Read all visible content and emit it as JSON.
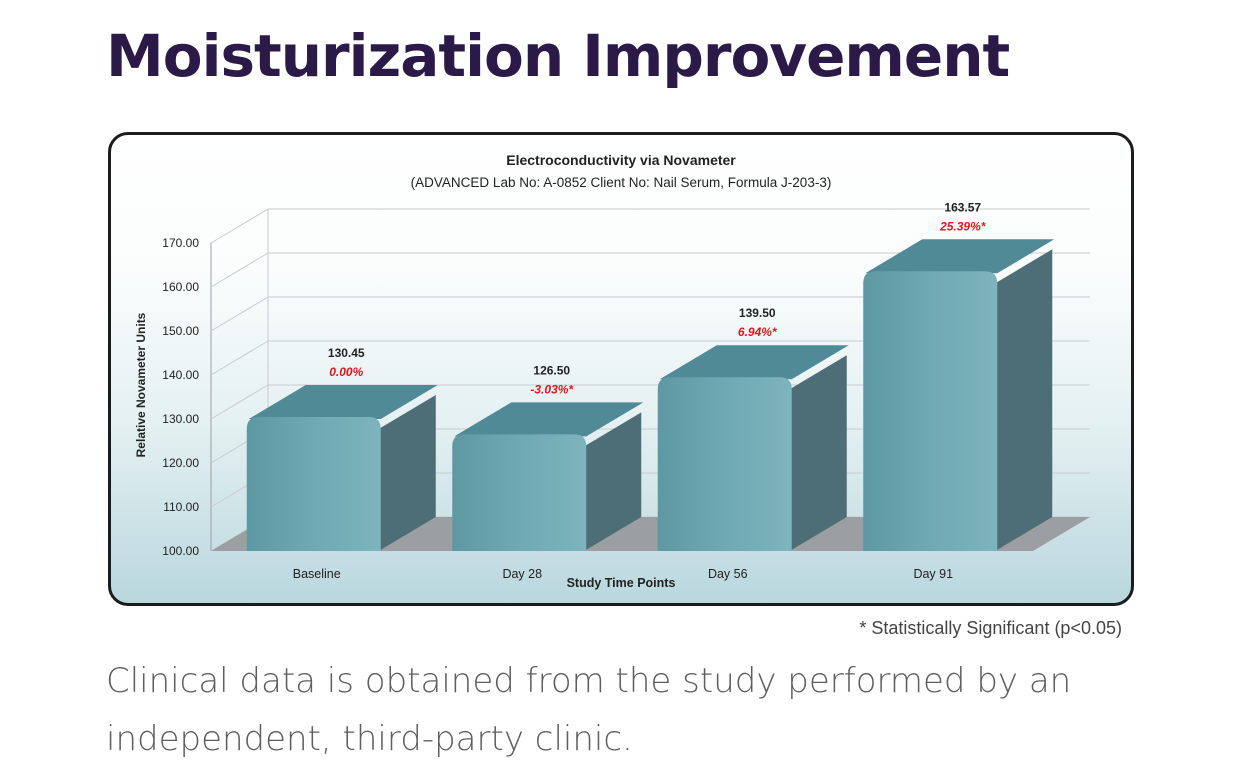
{
  "page": {
    "title": "Moisturization Improvement",
    "footnote": "* Statistically Significant (p<0.05)",
    "caption": "Clinical data is obtained from the study performed by an independent, third-party clinic."
  },
  "colors": {
    "title": "#2b1a47",
    "bar_front": "#6fa9b4",
    "bar_top": "#4f8a96",
    "bar_side": "#4d6e76",
    "floor": "#9c9fa2",
    "change_label": "#e0141e"
  },
  "chart_data": {
    "type": "bar",
    "title": "Electroconductivity via Novameter",
    "subtitle": "(ADVANCED Lab No: A-0852 Client No: Nail Serum, Formula J-203-3)",
    "xlabel": "Study Time  Points",
    "ylabel": "Relative Novameter Units",
    "categories": [
      "Baseline",
      "Day 28",
      "Day 56",
      "Day 91"
    ],
    "values": [
      130.45,
      126.5,
      139.5,
      163.57
    ],
    "value_labels": [
      "130.45",
      "126.50",
      "139.50",
      "163.57"
    ],
    "change_labels": [
      "0.00%",
      "-3.03%*",
      "6.94%*",
      "25.39%*"
    ],
    "ylim": [
      100,
      170
    ],
    "yticks": [
      100,
      110,
      120,
      130,
      140,
      150,
      160,
      170
    ],
    "ytick_labels": [
      "100.00",
      "110.00",
      "120.00",
      "130.00",
      "140.00",
      "150.00",
      "160.00",
      "170.00"
    ],
    "grid": true,
    "style": "3d"
  }
}
